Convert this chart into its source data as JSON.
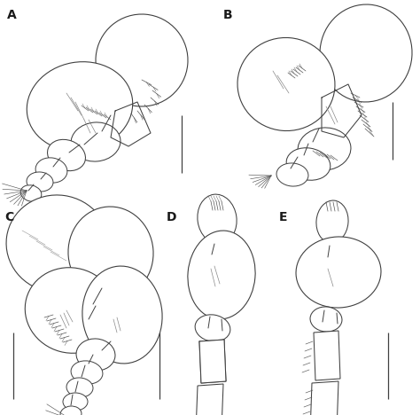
{
  "background_color": "#ffffff",
  "label_color": "#1a1a1a",
  "line_color": "#404040",
  "line_width": 0.7,
  "labels": [
    "A",
    "B",
    "C",
    "D",
    "E"
  ],
  "label_fontsize": 10,
  "label_fontweight": "bold",
  "fig_width": 4.74,
  "fig_height": 4.68,
  "dpi": 100
}
